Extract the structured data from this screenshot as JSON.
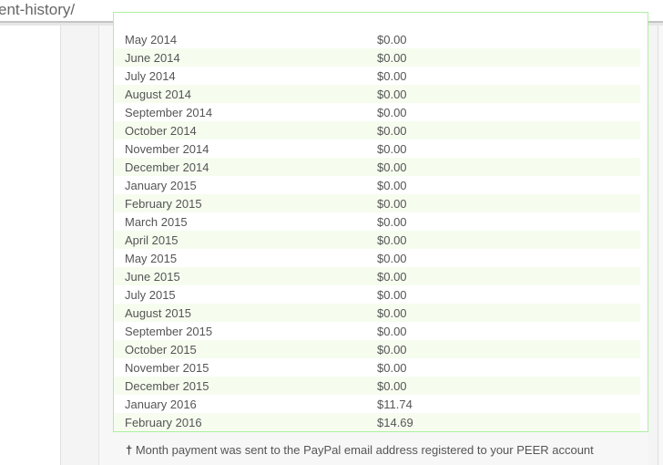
{
  "url_fragment": "ent-history/",
  "payments": [
    {
      "month": "May 2014",
      "amount": "$0.00"
    },
    {
      "month": "June 2014",
      "amount": "$0.00"
    },
    {
      "month": "July 2014",
      "amount": "$0.00"
    },
    {
      "month": "August 2014",
      "amount": "$0.00"
    },
    {
      "month": "September 2014",
      "amount": "$0.00"
    },
    {
      "month": "October 2014",
      "amount": "$0.00"
    },
    {
      "month": "November 2014",
      "amount": "$0.00"
    },
    {
      "month": "December 2014",
      "amount": "$0.00"
    },
    {
      "month": "January 2015",
      "amount": "$0.00"
    },
    {
      "month": "February 2015",
      "amount": "$0.00"
    },
    {
      "month": "March 2015",
      "amount": "$0.00"
    },
    {
      "month": "April 2015",
      "amount": "$0.00"
    },
    {
      "month": "May 2015",
      "amount": "$0.00"
    },
    {
      "month": "June 2015",
      "amount": "$0.00"
    },
    {
      "month": "July 2015",
      "amount": "$0.00"
    },
    {
      "month": "August 2015",
      "amount": "$0.00"
    },
    {
      "month": "September 2015",
      "amount": "$0.00"
    },
    {
      "month": "October 2015",
      "amount": "$0.00"
    },
    {
      "month": "November 2015",
      "amount": "$0.00"
    },
    {
      "month": "December 2015",
      "amount": "$0.00"
    },
    {
      "month": "January 2016",
      "amount": "$11.74"
    },
    {
      "month": "February 2016",
      "amount": "$14.69"
    }
  ],
  "footnote": {
    "mark": "†",
    "text": " Month payment was sent to the PayPal email address registered to your PEER account"
  }
}
